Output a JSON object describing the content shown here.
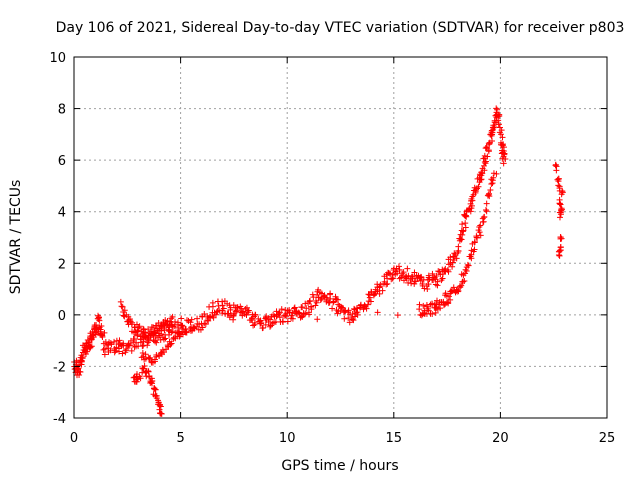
{
  "chart_data": {
    "type": "scatter",
    "title": "Day 106 of 2021, Sidereal Day-to-day VTEC variation (SDTVAR) for receiver p803",
    "xlabel": "GPS time / hours",
    "ylabel": "SDTVAR / TECUs",
    "xlim": [
      0,
      25
    ],
    "ylim": [
      -4,
      10
    ],
    "xticks": [
      0,
      5,
      10,
      15,
      20,
      25
    ],
    "yticks": [
      -4,
      -2,
      0,
      2,
      4,
      6,
      8,
      10
    ],
    "xtick_labels": [
      "0",
      "5",
      "10",
      "15",
      "20",
      "25"
    ],
    "ytick_labels": [
      "-4",
      "-2",
      "0",
      "2",
      "4",
      "6",
      "8",
      "10"
    ],
    "grid": true,
    "marker": "+",
    "series": [
      {
        "name": "SDTVAR",
        "color": "#ff0000",
        "trace": [
          [
            0.0,
            -1.8
          ],
          [
            0.2,
            -2.2
          ],
          [
            0.4,
            -1.6
          ],
          [
            0.6,
            -1.2
          ],
          [
            0.8,
            -1.0
          ],
          [
            1.0,
            -0.6
          ],
          [
            1.2,
            -0.2
          ],
          [
            1.5,
            -1.4
          ],
          [
            2.0,
            -1.2
          ],
          [
            2.5,
            -1.3
          ],
          [
            3.0,
            -1.0
          ],
          [
            3.5,
            -0.9
          ],
          [
            4.0,
            -0.8
          ],
          [
            4.5,
            -0.6
          ],
          [
            5.0,
            -0.4
          ],
          [
            5.5,
            -0.5
          ],
          [
            6.0,
            -0.3
          ],
          [
            6.5,
            0.2
          ],
          [
            7.0,
            0.3
          ],
          [
            7.5,
            0.1
          ],
          [
            8.0,
            0.2
          ],
          [
            8.5,
            -0.2
          ],
          [
            9.0,
            -0.3
          ],
          [
            9.5,
            -0.1
          ],
          [
            10.0,
            0.0
          ],
          [
            10.5,
            0.1
          ],
          [
            11.0,
            0.3
          ],
          [
            11.5,
            0.8
          ],
          [
            12.0,
            0.6
          ],
          [
            12.5,
            0.2
          ],
          [
            13.0,
            -0.1
          ],
          [
            13.5,
            0.3
          ],
          [
            14.0,
            0.8
          ],
          [
            14.5,
            1.2
          ],
          [
            15.0,
            1.7
          ],
          [
            15.5,
            1.6
          ],
          [
            16.0,
            1.4
          ],
          [
            16.5,
            1.2
          ],
          [
            17.0,
            1.4
          ],
          [
            17.5,
            1.8
          ],
          [
            18.0,
            2.4
          ],
          [
            18.3,
            3.6
          ],
          [
            18.6,
            4.2
          ],
          [
            18.9,
            5.0
          ],
          [
            19.2,
            5.8
          ],
          [
            19.5,
            6.6
          ],
          [
            19.7,
            7.4
          ],
          [
            19.9,
            7.9
          ],
          [
            20.1,
            6.5
          ],
          [
            20.2,
            6.1
          ]
        ],
        "secondary_trace": [
          [
            2.2,
            0.3
          ],
          [
            2.6,
            -0.3
          ],
          [
            3.0,
            -0.6
          ],
          [
            3.4,
            -0.8
          ],
          [
            3.8,
            -0.6
          ],
          [
            4.2,
            -0.4
          ],
          [
            4.6,
            -0.3
          ],
          [
            16.2,
            0.2
          ],
          [
            16.6,
            0.2
          ],
          [
            17.0,
            0.3
          ],
          [
            17.4,
            0.6
          ],
          [
            17.8,
            0.8
          ],
          [
            18.2,
            1.4
          ],
          [
            18.6,
            2.2
          ],
          [
            19.0,
            3.2
          ],
          [
            19.4,
            4.4
          ],
          [
            19.8,
            5.8
          ]
        ],
        "spread_trace": [
          [
            2.8,
            -2.6
          ],
          [
            3.0,
            -2.4
          ],
          [
            3.3,
            -2.1
          ],
          [
            3.6,
            -2.5
          ],
          [
            3.8,
            -3.0
          ],
          [
            4.0,
            -3.5
          ],
          [
            4.1,
            -3.8
          ],
          [
            3.2,
            -1.6
          ],
          [
            3.6,
            -1.8
          ],
          [
            4.0,
            -1.5
          ],
          [
            4.4,
            -1.2
          ],
          [
            4.8,
            -0.8
          ],
          [
            5.2,
            -0.6
          ]
        ],
        "late_cluster": [
          [
            22.6,
            5.7
          ],
          [
            22.7,
            5.3
          ],
          [
            22.75,
            4.9
          ],
          [
            22.8,
            4.4
          ],
          [
            22.85,
            4.1
          ],
          [
            22.9,
            4.7
          ],
          [
            22.8,
            3.9
          ],
          [
            22.85,
            2.9
          ],
          [
            22.8,
            2.6
          ],
          [
            22.75,
            2.4
          ]
        ]
      }
    ]
  }
}
